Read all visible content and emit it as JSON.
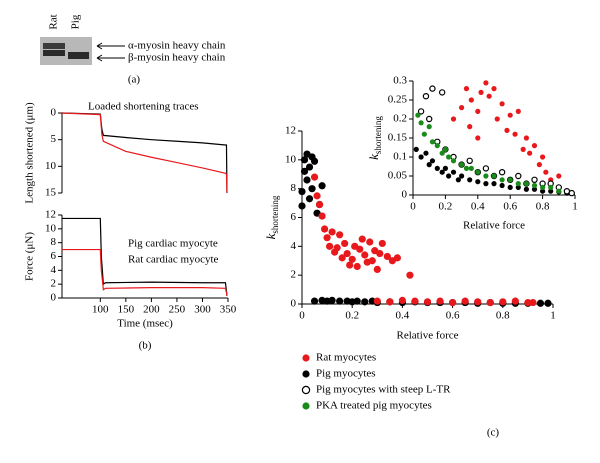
{
  "panel_labels": [
    "(a)",
    "(b)",
    "(c)"
  ],
  "gel": {
    "lanes": [
      "Rat",
      "Pig"
    ],
    "bands": [
      "α-myosin heavy chain",
      "β-myosin heavy chain"
    ]
  },
  "chart_data": [
    {
      "type": "line",
      "title": "Loaded shortening traces",
      "y_label": "Length shortened (μm)",
      "xlim": [
        25,
        350
      ],
      "ylim": [
        15,
        0
      ],
      "yticks": [
        0,
        5,
        10,
        15
      ],
      "series": [
        {
          "color": "#000000",
          "x": [
            25,
            100,
            103,
            106,
            150,
            200,
            250,
            300,
            345,
            347,
            348
          ],
          "values": [
            0,
            0.2,
            3,
            4.2,
            4.6,
            5,
            5.3,
            5.6,
            6,
            6,
            15
          ]
        },
        {
          "color": "#e8191c",
          "x": [
            25,
            100,
            103,
            106,
            150,
            200,
            250,
            300,
            345,
            347,
            348
          ],
          "values": [
            0,
            0.3,
            4,
            5.3,
            7.2,
            8.3,
            9.3,
            10.3,
            11.3,
            11.5,
            15
          ]
        }
      ]
    },
    {
      "type": "line",
      "y_label": "Force (μN)",
      "x_label": "Time (msec)",
      "xlim": [
        25,
        350
      ],
      "xticks": [
        100,
        150,
        200,
        250,
        300,
        350
      ],
      "ylim": [
        0,
        12
      ],
      "yticks": [
        0,
        2,
        4,
        6,
        8,
        10,
        12
      ],
      "series": [
        {
          "name": "Pig cardiac myocyte",
          "color": "#000000",
          "x": [
            25,
            100,
            102,
            106,
            110,
            200,
            300,
            345,
            347,
            348
          ],
          "values": [
            11.5,
            11.5,
            6,
            2,
            2.2,
            2.3,
            2.2,
            2.2,
            1,
            0.3
          ]
        },
        {
          "name": "Rat cardiac myocyte",
          "color": "#e8191c",
          "x": [
            25,
            100,
            102,
            106,
            110,
            200,
            300,
            345,
            347,
            348
          ],
          "values": [
            7,
            7,
            4,
            1.2,
            1.4,
            1.5,
            1.5,
            1.4,
            0.8,
            0.3
          ]
        }
      ]
    },
    {
      "type": "scatter",
      "y_label": {
        "symbol": "k",
        "subscript": "shortening"
      },
      "x_label": "Relative force",
      "xlim": [
        0,
        1
      ],
      "xticks": [
        0,
        0.2,
        0.4,
        0.6,
        0.8,
        1
      ],
      "ylim": [
        0,
        12
      ],
      "yticks": [
        0,
        2,
        4,
        6,
        8,
        10,
        12
      ],
      "series": [
        {
          "color": "#000000",
          "open": false,
          "x": [
            0.0,
            0.0,
            0.01,
            0.01,
            0.02,
            0.02,
            0.03,
            0.03,
            0.04,
            0.04,
            0.05,
            0.06,
            0.07,
            0.08,
            0.05,
            0.08,
            0.1,
            0.12,
            0.15,
            0.18,
            0.2,
            0.22,
            0.25,
            0.28,
            0.3,
            0.35,
            0.4,
            0.45,
            0.5,
            0.55,
            0.6,
            0.65,
            0.7,
            0.75,
            0.8,
            0.85,
            0.9,
            0.95,
            0.98
          ],
          "values": [
            6.8,
            7.8,
            9.2,
            10.0,
            8.6,
            10.4,
            9.5,
            7.3,
            10.2,
            8.0,
            9.9,
            6.3,
            6.9,
            8.2,
            0.2,
            0.25,
            0.2,
            0.25,
            0.2,
            0.2,
            0.15,
            0.2,
            0.15,
            0.2,
            0.1,
            0.15,
            0.1,
            0.15,
            0.1,
            0.1,
            0.1,
            0.1,
            0.05,
            0.1,
            0.05,
            0.05,
            0.05,
            0.05,
            0.05
          ]
        },
        {
          "color": "#e8191c",
          "open": false,
          "x": [
            0.05,
            0.06,
            0.07,
            0.08,
            0.09,
            0.1,
            0.11,
            0.12,
            0.13,
            0.14,
            0.15,
            0.16,
            0.17,
            0.18,
            0.19,
            0.2,
            0.21,
            0.22,
            0.23,
            0.24,
            0.25,
            0.26,
            0.27,
            0.28,
            0.29,
            0.3,
            0.31,
            0.32,
            0.34,
            0.36,
            0.38,
            0.43,
            0.3,
            0.35,
            0.4,
            0.45,
            0.5,
            0.55,
            0.6,
            0.65,
            0.7,
            0.75,
            0.8,
            0.85,
            0.9,
            0.92
          ],
          "values": [
            8.8,
            7.5,
            6.9,
            6.1,
            5.2,
            4.6,
            4.0,
            5.0,
            3.6,
            3.9,
            4.8,
            3.2,
            4.2,
            3.5,
            2.7,
            3.1,
            4.0,
            2.6,
            3.8,
            4.5,
            3.4,
            2.9,
            4.3,
            3.0,
            3.7,
            2.4,
            3.5,
            4.2,
            3.3,
            3.0,
            3.2,
            2.0,
            0.2,
            0.15,
            0.25,
            0.2,
            0.15,
            0.2,
            0.1,
            0.2,
            0.15,
            0.1,
            0.15,
            0.2,
            0.1,
            0.1
          ]
        }
      ]
    },
    {
      "type": "scatter",
      "y_label": {
        "symbol": "k",
        "subscript": "shortening"
      },
      "x_label": "Relative force",
      "xlim": [
        0,
        1
      ],
      "xticks": [
        0,
        0.2,
        0.4,
        0.6,
        0.8,
        1
      ],
      "ylim": [
        0,
        0.3
      ],
      "yticks": [
        0,
        0.05,
        0.1,
        0.15,
        0.2,
        0.25,
        0.3
      ],
      "series": [
        {
          "name": "Rat myocytes",
          "color": "#e8191c",
          "open": false,
          "x": [
            0.3,
            0.33,
            0.36,
            0.4,
            0.42,
            0.45,
            0.47,
            0.5,
            0.52,
            0.55,
            0.58,
            0.6,
            0.63,
            0.65,
            0.68,
            0.7,
            0.72,
            0.75,
            0.78,
            0.8,
            0.82,
            0.85,
            0.9,
            0.35,
            0.4,
            0.25
          ],
          "values": [
            0.23,
            0.28,
            0.25,
            0.22,
            0.27,
            0.295,
            0.26,
            0.28,
            0.2,
            0.24,
            0.17,
            0.21,
            0.16,
            0.22,
            0.12,
            0.15,
            0.11,
            0.13,
            0.08,
            0.1,
            0.06,
            0.04,
            0.05,
            0.18,
            0.15,
            0.2
          ]
        },
        {
          "name": "Pig myocytes",
          "color": "#000000",
          "open": false,
          "x": [
            0.02,
            0.05,
            0.08,
            0.1,
            0.12,
            0.15,
            0.18,
            0.2,
            0.22,
            0.25,
            0.28,
            0.3,
            0.35,
            0.4,
            0.45,
            0.5,
            0.55,
            0.6,
            0.65,
            0.7,
            0.75,
            0.8,
            0.85,
            0.9,
            0.95
          ],
          "values": [
            0.12,
            0.1,
            0.11,
            0.08,
            0.09,
            0.07,
            0.06,
            0.07,
            0.05,
            0.06,
            0.04,
            0.05,
            0.04,
            0.035,
            0.03,
            0.03,
            0.025,
            0.02,
            0.02,
            0.015,
            0.015,
            0.01,
            0.01,
            0.008,
            0.005
          ]
        },
        {
          "name": "Pig myocytes with steep L-TR",
          "color": "#000000",
          "open": true,
          "x": [
            0.05,
            0.08,
            0.1,
            0.12,
            0.15,
            0.18,
            0.2,
            0.25,
            0.3,
            0.35,
            0.4,
            0.45,
            0.5,
            0.55,
            0.6,
            0.65,
            0.7,
            0.75,
            0.8,
            0.85,
            0.9,
            0.95,
            0.98
          ],
          "values": [
            0.22,
            0.26,
            0.2,
            0.28,
            0.14,
            0.27,
            0.12,
            0.1,
            0.08,
            0.09,
            0.06,
            0.07,
            0.05,
            0.06,
            0.04,
            0.05,
            0.03,
            0.04,
            0.03,
            0.03,
            0.02,
            0.01,
            0.005
          ]
        },
        {
          "name": "PKA treated pig myocytes",
          "color": "#1a8a1a",
          "open": false,
          "x": [
            0.03,
            0.05,
            0.07,
            0.1,
            0.12,
            0.15,
            0.18,
            0.2,
            0.22,
            0.25,
            0.3,
            0.33,
            0.36,
            0.4,
            0.45,
            0.5,
            0.55,
            0.6,
            0.65,
            0.7,
            0.75,
            0.8,
            0.85,
            0.9
          ],
          "values": [
            0.21,
            0.19,
            0.16,
            0.18,
            0.14,
            0.13,
            0.11,
            0.12,
            0.1,
            0.09,
            0.08,
            0.07,
            0.07,
            0.06,
            0.05,
            0.05,
            0.04,
            0.04,
            0.03,
            0.03,
            0.025,
            0.02,
            0.02,
            0.01
          ]
        }
      ]
    }
  ]
}
